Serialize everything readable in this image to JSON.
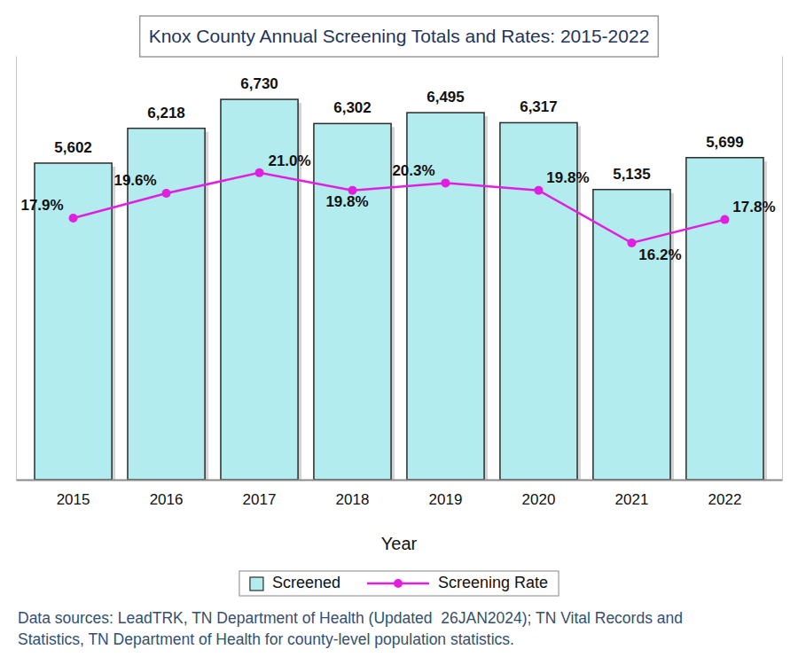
{
  "chart_data": {
    "type": "bar",
    "title": "Knox County Annual Screening Totals and Rates: 2015-2022",
    "x_label": "Year",
    "categories": [
      "2015",
      "2016",
      "2017",
      "2018",
      "2019",
      "2020",
      "2021",
      "2022"
    ],
    "series": [
      {
        "name": "Screened",
        "type": "bar",
        "color": "#b3ecee",
        "values": [
          5602,
          6218,
          6730,
          6302,
          6495,
          6317,
          5135,
          5699
        ],
        "value_labels": [
          "5,602",
          "6,218",
          "6,730",
          "6,302",
          "6,495",
          "6,317",
          "5,135",
          "5,699"
        ]
      },
      {
        "name": "Screening Rate",
        "type": "line",
        "axis": "y2",
        "color": "#e11fe1",
        "marker": "circle",
        "line_style": "solid",
        "values": [
          17.9,
          19.6,
          21.0,
          19.8,
          20.3,
          19.8,
          16.2,
          17.8
        ],
        "value_labels": [
          "17.9%",
          "19.6%",
          "21.0%",
          "19.8%",
          "20.3%",
          "19.8%",
          "16.2%",
          "17.8%"
        ]
      }
    ],
    "ylim": [
      0,
      7500
    ],
    "y2lim": [
      0,
      29
    ],
    "data_labels": true,
    "tick_labels": "x",
    "grid": false,
    "legend": "bottom",
    "note": [
      "Data sources: LeadTRK, TN Department of Health (Updated  26JAN2024); TN Vital Records and",
      "Statistics, TN Department of Health for county-level population statistics."
    ]
  }
}
